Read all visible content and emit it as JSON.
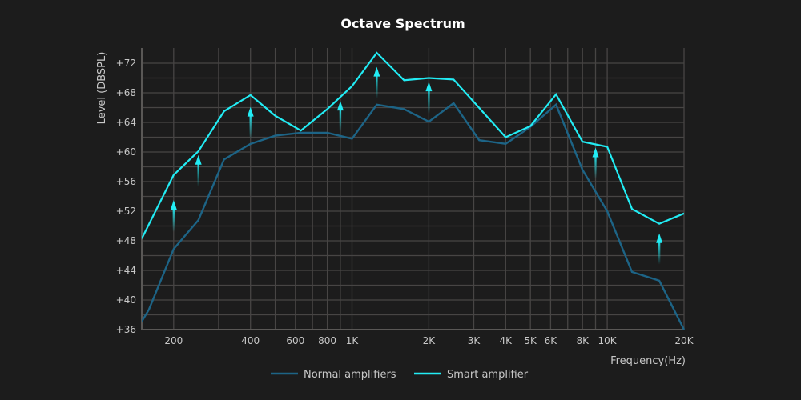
{
  "chart_data": {
    "type": "line",
    "title": "Octave Spectrum",
    "xlabel": "Frequency(Hz)",
    "ylabel": "Level (DBSPL)",
    "xscale": "log",
    "xlim": [
      150,
      20000
    ],
    "ylim": [
      36,
      74
    ],
    "grid": true,
    "legend_position": "bottom-center",
    "x_ticks": [
      {
        "value": 200,
        "label": "200"
      },
      {
        "value": 400,
        "label": "400"
      },
      {
        "value": 600,
        "label": "600"
      },
      {
        "value": 800,
        "label": "800"
      },
      {
        "value": 1000,
        "label": "1K"
      },
      {
        "value": 2000,
        "label": "2K"
      },
      {
        "value": 3000,
        "label": "3K"
      },
      {
        "value": 4000,
        "label": "4K"
      },
      {
        "value": 5000,
        "label": "5K"
      },
      {
        "value": 6000,
        "label": "6K"
      },
      {
        "value": 8000,
        "label": "8K"
      },
      {
        "value": 10000,
        "label": "10K"
      },
      {
        "value": 20000,
        "label": "20K"
      }
    ],
    "x_gridlines": [
      200,
      300,
      400,
      500,
      600,
      700,
      800,
      900,
      1000,
      2000,
      3000,
      4000,
      5000,
      6000,
      7000,
      8000,
      9000,
      10000,
      20000
    ],
    "y_ticks": [
      {
        "value": 36,
        "label": "+36"
      },
      {
        "value": 40,
        "label": "+40"
      },
      {
        "value": 44,
        "label": "+44"
      },
      {
        "value": 48,
        "label": "+48"
      },
      {
        "value": 52,
        "label": "+52"
      },
      {
        "value": 56,
        "label": "+56"
      },
      {
        "value": 60,
        "label": "+60"
      },
      {
        "value": 64,
        "label": "+64"
      },
      {
        "value": 68,
        "label": "+68"
      },
      {
        "value": 72,
        "label": "+72"
      }
    ],
    "series": [
      {
        "name": "Normal amplifiers",
        "color": "#1d6486",
        "points": [
          [
            150,
            37.1
          ],
          [
            160,
            38.7
          ],
          [
            200,
            46.9
          ],
          [
            250,
            50.8
          ],
          [
            315,
            59.0
          ],
          [
            400,
            61.1
          ],
          [
            500,
            62.2
          ],
          [
            630,
            62.6
          ],
          [
            800,
            62.6
          ],
          [
            1000,
            61.8
          ],
          [
            1250,
            66.4
          ],
          [
            1600,
            65.8
          ],
          [
            2000,
            64.1
          ],
          [
            2500,
            66.6
          ],
          [
            3150,
            61.6
          ],
          [
            4000,
            61.1
          ],
          [
            5000,
            63.4
          ],
          [
            6300,
            66.4
          ],
          [
            8000,
            57.6
          ],
          [
            10000,
            52.0
          ],
          [
            12500,
            43.8
          ],
          [
            16000,
            42.6
          ],
          [
            20000,
            36.0
          ]
        ]
      },
      {
        "name": "Smart amplifier",
        "color": "#22ecf4",
        "points": [
          [
            150,
            48.3
          ],
          [
            200,
            56.9
          ],
          [
            250,
            60.1
          ],
          [
            315,
            65.5
          ],
          [
            400,
            67.7
          ],
          [
            500,
            64.9
          ],
          [
            630,
            62.9
          ],
          [
            800,
            65.8
          ],
          [
            1000,
            68.9
          ],
          [
            1250,
            73.4
          ],
          [
            1600,
            69.7
          ],
          [
            2000,
            70.0
          ],
          [
            2500,
            69.8
          ],
          [
            4000,
            62.0
          ],
          [
            5000,
            63.5
          ],
          [
            6300,
            67.8
          ],
          [
            8000,
            61.4
          ],
          [
            10000,
            60.7
          ],
          [
            12500,
            52.3
          ],
          [
            16000,
            50.3
          ],
          [
            20000,
            51.7
          ]
        ]
      }
    ],
    "annotations": {
      "type": "boost-arrows",
      "color": "#22ecf4",
      "arrows": [
        {
          "x": 200,
          "from": 49.2,
          "to": 53.5
        },
        {
          "x": 250,
          "from": 55.3,
          "to": 59.6
        },
        {
          "x": 400,
          "from": 61.8,
          "to": 66.1
        },
        {
          "x": 900,
          "from": 62.7,
          "to": 66.9
        },
        {
          "x": 1250,
          "from": 67.2,
          "to": 71.5
        },
        {
          "x": 2000,
          "from": 65.2,
          "to": 69.5
        },
        {
          "x": 9000,
          "from": 56.4,
          "to": 60.6
        },
        {
          "x": 16000,
          "from": 44.8,
          "to": 49.0
        }
      ]
    }
  }
}
